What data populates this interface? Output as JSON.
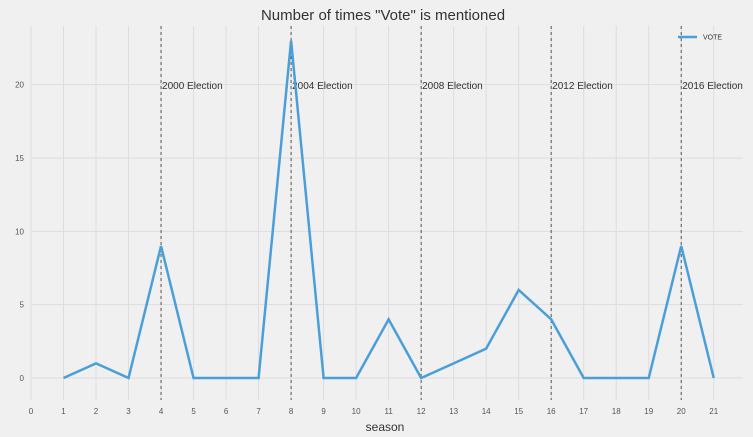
{
  "chart_data": {
    "type": "line",
    "title": "Number of times \"Vote\" is mentioned",
    "xlabel": "season",
    "ylabel": "",
    "x": [
      1,
      2,
      3,
      4,
      5,
      6,
      7,
      8,
      9,
      10,
      11,
      12,
      13,
      14,
      15,
      16,
      17,
      18,
      19,
      20,
      21
    ],
    "series": [
      {
        "name": "VOTE",
        "color": "#4a9fd8",
        "values": [
          0,
          1,
          0,
          9,
          0,
          0,
          0,
          23,
          0,
          0,
          4,
          0,
          1,
          2,
          6,
          4,
          0,
          0,
          0,
          9,
          0
        ]
      }
    ],
    "xlim": [
      0,
      21.9
    ],
    "ylim": [
      -1.5,
      24
    ],
    "xticks": [
      0,
      1,
      2,
      3,
      4,
      5,
      6,
      7,
      8,
      9,
      10,
      11,
      12,
      13,
      14,
      15,
      16,
      17,
      18,
      19,
      20,
      21
    ],
    "yticks": [
      0,
      5,
      10,
      15,
      20
    ],
    "grid": true,
    "legend_position": "top-right",
    "events": [
      {
        "x": 4,
        "label": "2000 Election"
      },
      {
        "x": 8,
        "label": "2004 Election"
      },
      {
        "x": 12,
        "label": "2008 Election"
      },
      {
        "x": 16,
        "label": "2012 Election"
      },
      {
        "x": 20,
        "label": "2016 Election"
      }
    ],
    "colors": {
      "background": "#f0f0f0",
      "grid": "#dddddd",
      "event_line": "#555555"
    }
  }
}
